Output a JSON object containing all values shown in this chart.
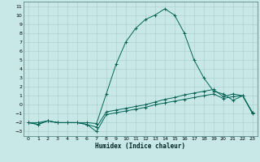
{
  "xlabel": "Humidex (Indice chaleur)",
  "bg_color": "#c8e8e8",
  "grid_color": "#a8cccc",
  "line_color": "#006655",
  "xlim": [
    -0.5,
    23.5
  ],
  "ylim": [
    -3.5,
    11.5
  ],
  "xticks": [
    0,
    1,
    2,
    3,
    4,
    5,
    6,
    7,
    8,
    9,
    10,
    11,
    12,
    13,
    14,
    15,
    16,
    17,
    18,
    19,
    20,
    21,
    22,
    23
  ],
  "yticks": [
    -3,
    -2,
    -1,
    0,
    1,
    2,
    3,
    4,
    5,
    6,
    7,
    8,
    9,
    10,
    11
  ],
  "series": [
    {
      "x": [
        0,
        1,
        2,
        3,
        4,
        5,
        6,
        7,
        8,
        9,
        10,
        11,
        12,
        13,
        14,
        15,
        16,
        17,
        18,
        19,
        20,
        21,
        22,
        23
      ],
      "y": [
        -2.0,
        -2.2,
        -1.8,
        -2.0,
        -2.0,
        -2.0,
        -2.2,
        -3.0,
        -1.1,
        -0.9,
        -0.7,
        -0.5,
        -0.3,
        0.0,
        0.2,
        0.4,
        0.6,
        0.8,
        1.0,
        1.2,
        0.7,
        0.9,
        1.0,
        -0.9
      ]
    },
    {
      "x": [
        0,
        1,
        2,
        3,
        4,
        5,
        6,
        7,
        8,
        9,
        10,
        11,
        12,
        13,
        14,
        15,
        16,
        17,
        18,
        19,
        20,
        21,
        22,
        23
      ],
      "y": [
        -2.0,
        -2.2,
        -1.8,
        -2.0,
        -2.0,
        -2.0,
        -2.2,
        -2.5,
        -0.8,
        -0.6,
        -0.4,
        -0.2,
        0.0,
        0.3,
        0.6,
        0.8,
        1.1,
        1.3,
        1.5,
        1.7,
        0.9,
        1.2,
        1.0,
        -0.9
      ]
    },
    {
      "x": [
        0,
        1,
        2,
        3,
        4,
        5,
        6,
        7,
        8,
        9,
        10,
        11,
        12,
        13,
        14,
        15,
        16,
        17,
        18,
        19,
        20,
        21,
        22,
        23
      ],
      "y": [
        -2.0,
        -2.0,
        -1.8,
        -2.0,
        -2.0,
        -2.0,
        -2.0,
        -2.1,
        1.2,
        4.5,
        7.0,
        8.5,
        9.5,
        10.0,
        10.7,
        10.0,
        8.0,
        5.0,
        3.0,
        1.5,
        1.2,
        0.5,
        1.0,
        -1.0
      ]
    }
  ]
}
